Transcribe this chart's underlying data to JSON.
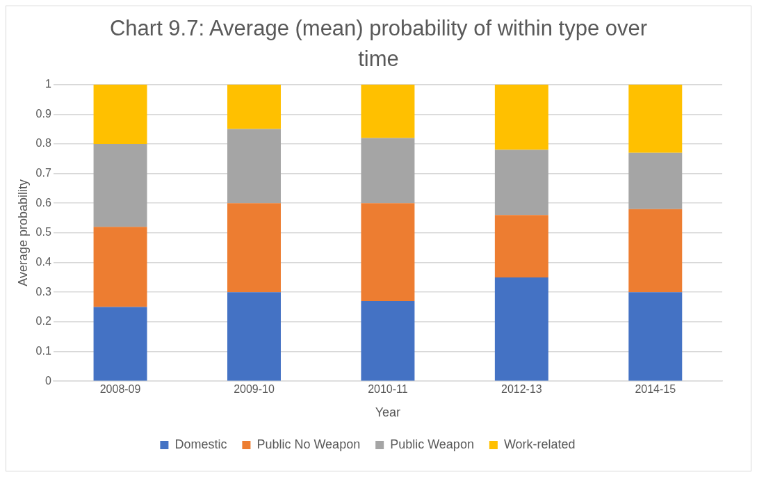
{
  "chart_data": {
    "type": "bar",
    "title": "Chart 9.7: Average (mean) probability of within type over time",
    "xlabel": "Year",
    "ylabel": "Average probability",
    "categories": [
      "2008-09",
      "2009-10",
      "2010-11",
      "2012-13",
      "2014-15"
    ],
    "series": [
      {
        "name": "Domestic",
        "color": "#4472c4",
        "values": [
          0.25,
          0.3,
          0.27,
          0.35,
          0.3
        ]
      },
      {
        "name": "Public No Weapon",
        "color": "#ed7d31",
        "values": [
          0.27,
          0.3,
          0.33,
          0.21,
          0.28
        ]
      },
      {
        "name": "Public Weapon",
        "color": "#a5a5a5",
        "values": [
          0.28,
          0.25,
          0.22,
          0.22,
          0.19
        ]
      },
      {
        "name": "Work-related",
        "color": "#ffc000",
        "values": [
          0.2,
          0.15,
          0.18,
          0.22,
          0.23
        ]
      }
    ],
    "stacked": true,
    "ylim": [
      0,
      1
    ],
    "yticks": [
      0,
      0.1,
      0.2,
      0.3,
      0.4,
      0.5,
      0.6,
      0.7,
      0.8,
      0.9,
      1
    ],
    "grid": "y",
    "legend": "bottom"
  }
}
